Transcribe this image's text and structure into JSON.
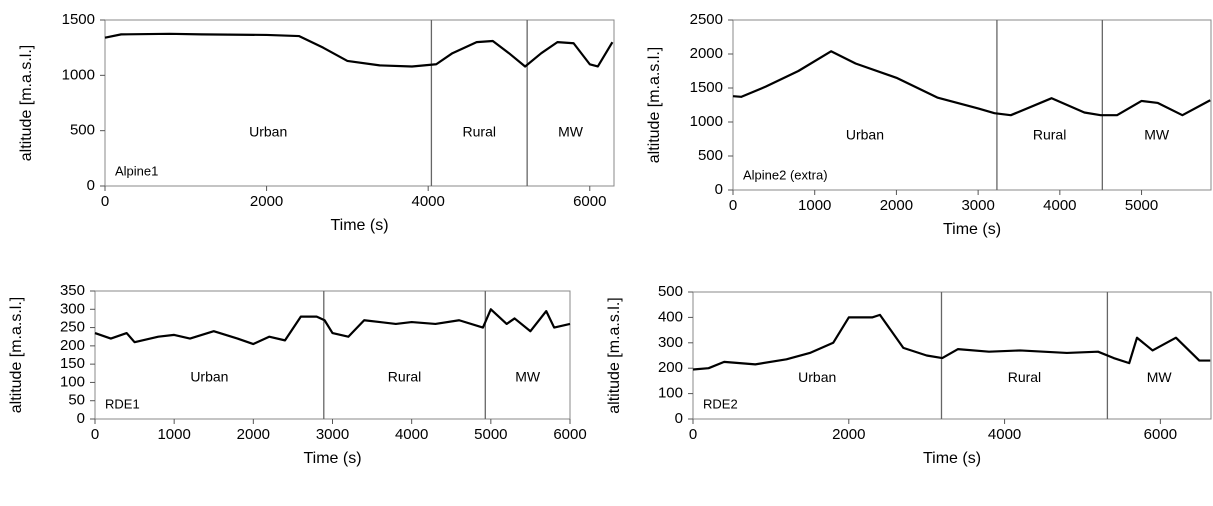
{
  "chart_data": [
    {
      "type": "line",
      "panel_label": "Alpine1",
      "xlabel": "Time (s)",
      "ylabel": "altitude  [m.a.s.l.]",
      "color": "#000000",
      "x": [
        0,
        200,
        800,
        1200,
        2000,
        2400,
        2700,
        3000,
        3400,
        3800,
        4100,
        4300,
        4600,
        4800,
        5000,
        5200,
        5400,
        5600,
        5800,
        6000,
        6100,
        6280
      ],
      "values": [
        1340,
        1370,
        1375,
        1370,
        1365,
        1355,
        1250,
        1130,
        1090,
        1080,
        1100,
        1200,
        1300,
        1310,
        1200,
        1080,
        1200,
        1300,
        1290,
        1100,
        1080,
        1300
      ],
      "xlim": [
        0,
        6300
      ],
      "ylim": [
        0,
        1500
      ],
      "xticks": [
        0,
        2000,
        4000,
        6000
      ],
      "yticks": [
        0,
        500,
        1000,
        1500
      ],
      "dividers": [
        4040,
        5225
      ],
      "sections": [
        "Urban",
        "Rural",
        "MW"
      ]
    },
    {
      "type": "line",
      "panel_label": "Alpine2 (extra)",
      "xlabel": "Time (s)",
      "ylabel": "altitude  [m.a.s.l.]",
      "color": "#000000",
      "x": [
        0,
        100,
        400,
        800,
        1200,
        1500,
        2000,
        2500,
        3000,
        3200,
        3400,
        3900,
        4300,
        4500,
        4700,
        5000,
        5200,
        5500,
        5840
      ],
      "values": [
        1380,
        1370,
        1520,
        1750,
        2040,
        1860,
        1650,
        1360,
        1200,
        1130,
        1100,
        1350,
        1140,
        1100,
        1100,
        1310,
        1280,
        1100,
        1320
      ],
      "xlim": [
        0,
        5850
      ],
      "ylim": [
        0,
        2500
      ],
      "xticks": [
        0,
        1000,
        2000,
        3000,
        4000,
        5000
      ],
      "yticks": [
        0,
        500,
        1000,
        1500,
        2000,
        2500
      ],
      "dividers": [
        3230,
        4520
      ],
      "sections": [
        "Urban",
        "Rural",
        "MW"
      ]
    },
    {
      "type": "line",
      "panel_label": "RDE1",
      "xlabel": "Time (s)",
      "ylabel": "altitude  [m.a.s.l.]",
      "color": "#000000",
      "x": [
        0,
        200,
        400,
        500,
        800,
        1000,
        1200,
        1500,
        1800,
        2000,
        2200,
        2400,
        2600,
        2800,
        2900,
        3000,
        3200,
        3400,
        3600,
        3800,
        4000,
        4300,
        4600,
        4900,
        5000,
        5200,
        5300,
        5500,
        5700,
        5800,
        6000
      ],
      "values": [
        235,
        220,
        235,
        210,
        225,
        230,
        220,
        240,
        220,
        205,
        225,
        215,
        280,
        280,
        270,
        235,
        225,
        270,
        265,
        260,
        265,
        260,
        270,
        250,
        300,
        260,
        275,
        240,
        295,
        250,
        260
      ],
      "xlim": [
        0,
        6000
      ],
      "ylim": [
        0,
        350
      ],
      "xticks": [
        0,
        1000,
        2000,
        3000,
        4000,
        5000,
        6000
      ],
      "yticks": [
        0,
        50,
        100,
        150,
        200,
        250,
        300,
        350
      ],
      "dividers": [
        2890,
        4930
      ],
      "sections": [
        "Urban",
        "Rural",
        "MW"
      ]
    },
    {
      "type": "line",
      "panel_label": "RDE2",
      "xlabel": "Time (s)",
      "ylabel": "altitude  [m.a.s.l.]",
      "color": "#000000",
      "x": [
        0,
        200,
        400,
        800,
        1200,
        1500,
        1800,
        2000,
        2300,
        2400,
        2700,
        3000,
        3200,
        3400,
        3800,
        4200,
        4800,
        5200,
        5400,
        5600,
        5700,
        5900,
        6200,
        6500,
        6640
      ],
      "values": [
        195,
        200,
        225,
        215,
        235,
        260,
        300,
        400,
        400,
        410,
        280,
        250,
        240,
        275,
        265,
        270,
        260,
        265,
        240,
        220,
        320,
        270,
        320,
        230,
        230
      ],
      "xlim": [
        0,
        6650
      ],
      "ylim": [
        0,
        500
      ],
      "xticks": [
        0,
        2000,
        4000,
        6000
      ],
      "yticks": [
        0,
        100,
        200,
        300,
        400,
        500
      ],
      "dividers": [
        3190,
        5320
      ],
      "sections": [
        "Urban",
        "Rural",
        "MW"
      ]
    }
  ]
}
